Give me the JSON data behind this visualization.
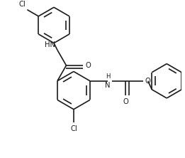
{
  "bg_color": "#ffffff",
  "line_color": "#1a1a1a",
  "lw": 1.2,
  "fs": 7.2,
  "figsize": [
    2.61,
    2.22
  ],
  "dpi": 100,
  "xlim": [
    0.0,
    5.2
  ],
  "ylim": [
    0.0,
    4.4
  ]
}
